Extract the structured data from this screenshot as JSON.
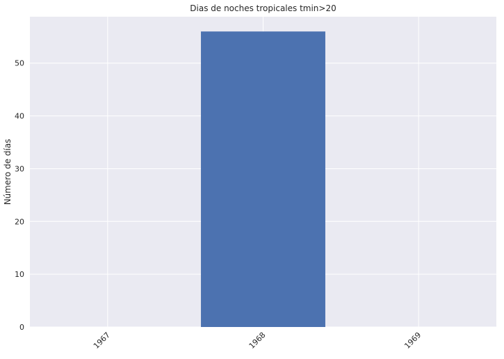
{
  "chart_data": {
    "type": "bar",
    "title": "Dias de noches tropicales tmin>20",
    "xlabel": "",
    "ylabel": "Número de días",
    "categories": [
      "1967",
      "1968",
      "1969"
    ],
    "values": [
      0,
      56,
      0
    ],
    "ylim": [
      0,
      58.8
    ],
    "yticks": [
      0,
      10,
      20,
      30,
      40,
      50
    ],
    "grid": true,
    "legend": "none",
    "colors": {
      "bar": "#4c72b0",
      "background": "#eaeaf2",
      "grid": "#ffffff"
    }
  }
}
